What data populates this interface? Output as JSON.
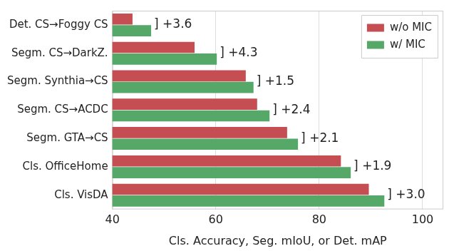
{
  "chart_data": {
    "type": "bar",
    "orientation": "horizontal",
    "categories": [
      "Det. CS→Foggy CS",
      "Segm. CS→DarkZ.",
      "Segm. Synthia→CS",
      "Segm. CS→ACDC",
      "Segm. GTA→CS",
      "Cls. OfficeHome",
      "Cls. VisDA"
    ],
    "series": [
      {
        "name": "w/o MIC",
        "color": "#c44e52",
        "values": [
          43.9,
          55.9,
          65.8,
          68.0,
          73.8,
          84.2,
          89.6
        ]
      },
      {
        "name": "w/ MIC",
        "color": "#55a868",
        "values": [
          47.5,
          60.2,
          67.3,
          70.4,
          75.9,
          86.1,
          92.6
        ]
      }
    ],
    "annotations": [
      "] +3.6",
      "] +4.3",
      "] +1.5",
      "] +2.4",
      "] +2.1",
      "] +1.9",
      "] +3.0"
    ],
    "x_label": "Cls. Accuracy, Seg. mIoU, or Det. mAP",
    "xlim": [
      40,
      104
    ],
    "xticks": [
      40,
      60,
      80,
      100
    ],
    "grid": true,
    "legend": "top-right"
  }
}
